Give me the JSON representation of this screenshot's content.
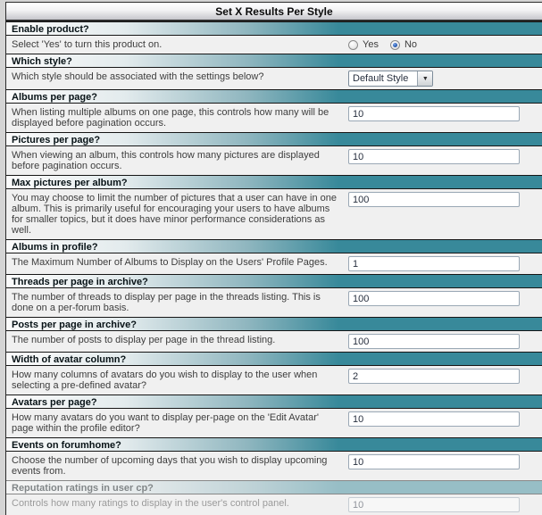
{
  "panel": {
    "title": "Set X Results Per Style"
  },
  "colors": {
    "accent_teal": "#38899a",
    "row_background": "#f0f0f0",
    "page_background": "#d4d4d4"
  },
  "sections": [
    {
      "header": "Enable product?",
      "description": "Select 'Yes' to turn this product on.",
      "control": {
        "type": "radio-group",
        "options": [
          "Yes",
          "No"
        ],
        "selected": "No"
      }
    },
    {
      "header": "Which style?",
      "description": "Which style should be associated with the settings below?",
      "control": {
        "type": "select",
        "value": "Default Style"
      }
    },
    {
      "header": "Albums per page?",
      "description": "When listing multiple albums on one page, this controls how many will be displayed before pagination occurs.",
      "control": {
        "type": "text",
        "value": "10"
      }
    },
    {
      "header": "Pictures per page?",
      "description": "When viewing an album, this controls how many pictures are displayed before pagination occurs.",
      "control": {
        "type": "text",
        "value": "10"
      }
    },
    {
      "header": "Max pictures per album?",
      "description": "You may choose to limit the number of pictures that a user can have in one album. This is primarily useful for encouraging your users to have albums for smaller topics, but it does have minor performance considerations as well.",
      "control": {
        "type": "text",
        "value": "100"
      }
    },
    {
      "header": "Albums in profile?",
      "description": "The Maximum Number of Albums to Display on the Users' Profile Pages.",
      "control": {
        "type": "text",
        "value": "1"
      }
    },
    {
      "header": "Threads per page in archive?",
      "description": "The number of threads to display per page in the threads listing. This is done on a per-forum basis.",
      "control": {
        "type": "text",
        "value": "100"
      }
    },
    {
      "header": "Posts per page in archive?",
      "description": "The number of posts to display per page in the thread listing.",
      "control": {
        "type": "text",
        "value": "100"
      }
    },
    {
      "header": "Width of avatar column?",
      "description": "How many columns of avatars do you wish to display to the user when selecting a pre-defined avatar?",
      "control": {
        "type": "text",
        "value": "2"
      }
    },
    {
      "header": "Avatars per page?",
      "description": "How many avatars do you want to display per-page on the 'Edit Avatar' page within the profile editor?",
      "control": {
        "type": "text",
        "value": "10"
      }
    },
    {
      "header": "Events on forumhome?",
      "description": "Choose the number of upcoming days that you wish to display upcoming events from.",
      "control": {
        "type": "text",
        "value": "10"
      }
    },
    {
      "header": "Reputation ratings in user cp?",
      "description": "Controls how many ratings to display in the user's control panel.",
      "control": {
        "type": "text",
        "value": "10"
      },
      "disabled": true
    }
  ]
}
